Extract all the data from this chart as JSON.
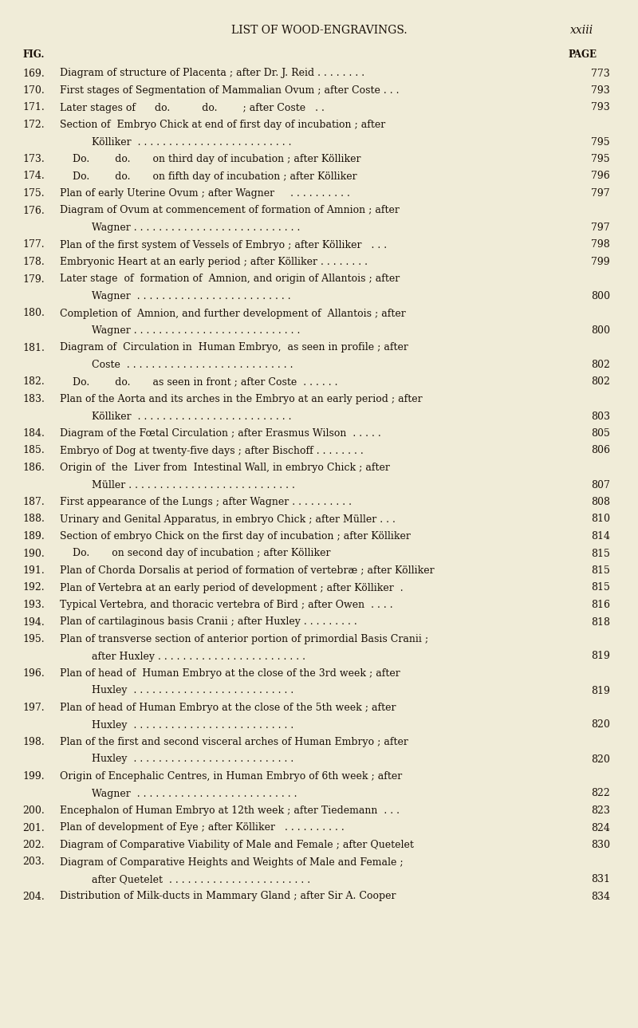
{
  "title": "LIST OF WOOD-ENGRAVINGS.",
  "page_num": "xxiii",
  "fig_label": "FIG.",
  "page_label": "PAGE",
  "bg_color": "#f0ecd8",
  "text_color": "#1a1008",
  "entries": [
    {
      "num": "169.",
      "line1": "Diagram of structure of Placenta ; after Dr. J. Reid . . . . . . . .",
      "page": "773",
      "line2": null,
      "indent": false
    },
    {
      "num": "170.",
      "line1": "First stages of Segmentation of Mammalian Ovum ; after Coste . . .",
      "page": "793",
      "line2": null,
      "indent": false
    },
    {
      "num": "171.",
      "line1": "Later stages of      do.          do.        ; after Coste   . .",
      "page": "793",
      "line2": null,
      "indent": false
    },
    {
      "num": "172.",
      "line1": "Section of  Embryo Chick at end of first day of incubation ; after",
      "page": null,
      "line2": "Kölliker  . . . . . . . . . . . . . . . . . . . . . . . . .",
      "page2": "795",
      "indent": false
    },
    {
      "num": "173.",
      "line1": "    Do.        do.       on third day of incubation ; after Kölliker",
      "page": "795",
      "line2": null,
      "indent": false
    },
    {
      "num": "174.",
      "line1": "    Do.        do.       on fifth day of incubation ; after Kölliker",
      "page": "796",
      "line2": null,
      "indent": false
    },
    {
      "num": "175.",
      "line1": "Plan of early Uterine Ovum ; after Wagner     . . . . . . . . . .",
      "page": "797",
      "line2": null,
      "indent": false
    },
    {
      "num": "176.",
      "line1": "Diagram of Ovum at commencement of formation of Amnion ; after",
      "page": null,
      "line2": "Wagner . . . . . . . . . . . . . . . . . . . . . . . . . . .",
      "page2": "797",
      "indent": false
    },
    {
      "num": "177.",
      "line1": "Plan of the first system of Vessels of Embryo ; after Kölliker   . . .",
      "page": "798",
      "line2": null,
      "indent": false
    },
    {
      "num": "178.",
      "line1": "Embryonic Heart at an early period ; after Kölliker . . . . . . . .",
      "page": "799",
      "line2": null,
      "indent": false
    },
    {
      "num": "179.",
      "line1": "Later stage  of  formation of  Amnion, and origin of Allantois ; after",
      "page": null,
      "line2": "Wagner  . . . . . . . . . . . . . . . . . . . . . . . . .",
      "page2": "800",
      "indent": false
    },
    {
      "num": "180.",
      "line1": "Completion of  Amnion, and further development of  Allantois ; after",
      "page": null,
      "line2": "Wagner . . . . . . . . . . . . . . . . . . . . . . . . . . .",
      "page2": "800",
      "indent": false
    },
    {
      "num": "181.",
      "line1": "Diagram of  Circulation in  Human Embryo,  as seen in profile ; after",
      "page": null,
      "line2": "Coste  . . . . . . . . . . . . . . . . . . . . . . . . . . .",
      "page2": "802",
      "indent": false
    },
    {
      "num": "182.",
      "line1": "    Do.        do.       as seen in front ; after Coste  . . . . . .",
      "page": "802",
      "line2": null,
      "indent": false
    },
    {
      "num": "183.",
      "line1": "Plan of the Aorta and its arches in the Embryo at an early period ; after",
      "page": null,
      "line2": "Kölliker  . . . . . . . . . . . . . . . . . . . . . . . . .",
      "page2": "803",
      "indent": false
    },
    {
      "num": "184.",
      "line1": "Diagram of the Fœtal Circulation ; after Erasmus Wilson  . . . . .",
      "page": "805",
      "line2": null,
      "indent": false
    },
    {
      "num": "185.",
      "line1": "Embryo of Dog at twenty-five days ; after Bischoff . . . . . . . .",
      "page": "806",
      "line2": null,
      "indent": false
    },
    {
      "num": "186.",
      "line1": "Origin of  the  Liver from  Intestinal Wall, in embryo Chick ; after",
      "page": null,
      "line2": "Müller . . . . . . . . . . . . . . . . . . . . . . . . . . .",
      "page2": "807",
      "indent": false
    },
    {
      "num": "187.",
      "line1": "First appearance of the Lungs ; after Wagner . . . . . . . . . .",
      "page": "808",
      "line2": null,
      "indent": false
    },
    {
      "num": "188.",
      "line1": "Urinary and Genital Apparatus, in embryo Chick ; after Müller . . .",
      "page": "810",
      "line2": null,
      "indent": false
    },
    {
      "num": "189.",
      "line1": "Section of embryo Chick on the first day of incubation ; after Kölliker",
      "page": "814",
      "line2": null,
      "indent": false
    },
    {
      "num": "190.",
      "line1": "    Do.       on second day of incubation ; after Kölliker",
      "page": "815",
      "line2": null,
      "indent": false
    },
    {
      "num": "191.",
      "line1": "Plan of Chorda Dorsalis at period of formation of vertebræ ; after Kölliker",
      "page": "815",
      "line2": null,
      "indent": false
    },
    {
      "num": "192.",
      "line1": "Plan of Vertebra at an early period of development ; after Kölliker  .",
      "page": "815",
      "line2": null,
      "indent": false
    },
    {
      "num": "193.",
      "line1": "Typical Vertebra, and thoracic vertebra of Bird ; after Owen  . . . .",
      "page": "816",
      "line2": null,
      "indent": false
    },
    {
      "num": "194.",
      "line1": "Plan of cartilaginous basis Cranii ; after Huxley . . . . . . . . .",
      "page": "818",
      "line2": null,
      "indent": false
    },
    {
      "num": "195.",
      "line1": "Plan of transverse section of anterior portion of primordial Basis Cranii ;",
      "page": null,
      "line2": "after Huxley . . . . . . . . . . . . . . . . . . . . . . . .",
      "page2": "819",
      "indent": false
    },
    {
      "num": "196.",
      "line1": "Plan of head of  Human Embryo at the close of the 3rd week ; after",
      "page": null,
      "line2": "Huxley  . . . . . . . . . . . . . . . . . . . . . . . . . .",
      "page2": "819",
      "indent": false
    },
    {
      "num": "197.",
      "line1": "Plan of head of Human Embryo at the close of the 5th week ; after",
      "page": null,
      "line2": "Huxley  . . . . . . . . . . . . . . . . . . . . . . . . . .",
      "page2": "820",
      "indent": false
    },
    {
      "num": "198.",
      "line1": "Plan of the first and second visceral arches of Human Embryo ; after",
      "page": null,
      "line2": "Huxley  . . . . . . . . . . . . . . . . . . . . . . . . . .",
      "page2": "820",
      "indent": false
    },
    {
      "num": "199.",
      "line1": "Origin of Encephalic Centres, in Human Embryo of 6th week ; after",
      "page": null,
      "line2": "Wagner  . . . . . . . . . . . . . . . . . . . . . . . . . .",
      "page2": "822",
      "indent": false
    },
    {
      "num": "200.",
      "line1": "Encephalon of Human Embryo at 12th week ; after Tiedemann  . . .",
      "page": "823",
      "line2": null,
      "indent": false
    },
    {
      "num": "201.",
      "line1": "Plan of development of Eye ; after Kölliker   . . . . . . . . . .",
      "page": "824",
      "line2": null,
      "indent": false
    },
    {
      "num": "202.",
      "line1": "Diagram of Comparative Viability of Male and Female ; after Quetelet",
      "page": "830",
      "line2": null,
      "indent": false
    },
    {
      "num": "203.",
      "line1": "Diagram of Comparative Heights and Weights of Male and Female ;",
      "page": null,
      "line2": "after Quetelet  . . . . . . . . . . . . . . . . . . . . . . .",
      "page2": "831",
      "indent": false
    },
    {
      "num": "204.",
      "line1": "Distribution of Milk-ducts in Mammary Gland ; after Sir A. Cooper",
      "page": "834",
      "line2": null,
      "indent": false
    }
  ]
}
